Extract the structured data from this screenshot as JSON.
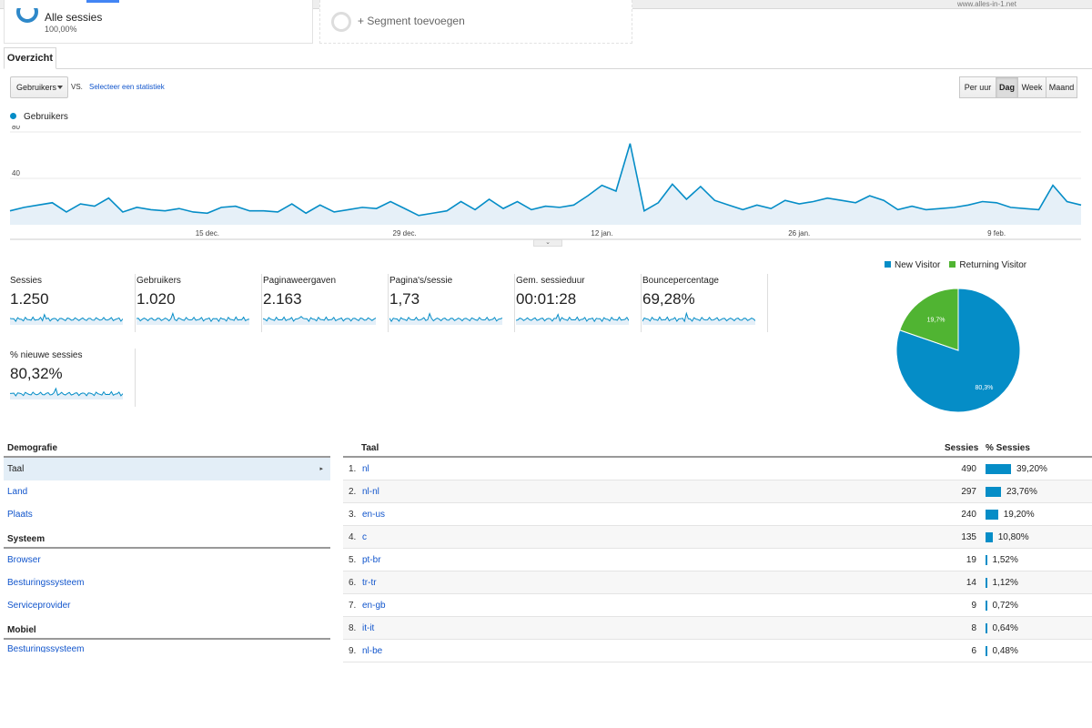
{
  "site": {
    "watermark": "www.alles-in-1.net"
  },
  "segments": {
    "active": {
      "title": "Alle sessies",
      "share": "100,00%"
    },
    "add_label": "+ Segment toevoegen"
  },
  "tabs": [
    {
      "label": "Overzicht"
    }
  ],
  "controls": {
    "metric_select": "Gebruikers",
    "vs_label": "VS.",
    "compare_link": "Selecteer een statistiek",
    "granularity": [
      {
        "label": "Per uur",
        "active": false
      },
      {
        "label": "Dag",
        "active": true
      },
      {
        "label": "Week",
        "active": false
      },
      {
        "label": "Maand",
        "active": false
      }
    ]
  },
  "chart_data": [
    {
      "type": "area",
      "series": [
        {
          "name": "Gebruikers",
          "color": "#058dc7",
          "values": [
            12,
            15,
            17,
            19,
            11,
            18,
            16,
            23,
            11,
            15,
            13,
            12,
            14,
            11,
            10,
            15,
            16,
            12,
            12,
            11,
            18,
            10,
            17,
            11,
            13,
            15,
            14,
            20,
            14,
            8,
            10,
            12,
            20,
            13,
            22,
            14,
            20,
            13,
            16,
            15,
            17,
            25,
            34,
            29,
            70,
            12,
            19,
            35,
            22,
            33,
            21,
            17,
            13,
            17,
            14,
            21,
            18,
            20,
            23,
            21,
            19,
            25,
            21,
            13,
            16,
            13,
            14,
            15,
            17,
            20,
            19,
            15,
            14,
            13,
            34,
            20,
            17
          ],
          "days": 77
        }
      ],
      "ylim": [
        0,
        80
      ],
      "yticks": [
        40,
        80
      ],
      "xticks": [
        {
          "label": "15 dec.",
          "day": 14
        },
        {
          "label": "29 dec.",
          "day": 28
        },
        {
          "label": "12 jan.",
          "day": 42
        },
        {
          "label": "26 jan.",
          "day": 56
        },
        {
          "label": "9 feb.",
          "day": 70
        }
      ]
    },
    {
      "type": "pie",
      "slices": [
        {
          "name": "New Visitor",
          "value": 80.3,
          "label": "80,3%",
          "color": "#058dc7"
        },
        {
          "name": "Returning Visitor",
          "value": 19.7,
          "label": "19,7%",
          "color": "#50b432"
        }
      ]
    }
  ],
  "metrics": [
    {
      "label": "Sessies",
      "value": "1.250"
    },
    {
      "label": "Gebruikers",
      "value": "1.020"
    },
    {
      "label": "Paginaweergaven",
      "value": "2.163"
    },
    {
      "label": "Pagina's/sessie",
      "value": "1,73"
    },
    {
      "label": "Gem. sessieduur",
      "value": "00:01:28"
    },
    {
      "label": "Bouncepercentage",
      "value": "69,28%"
    },
    {
      "label": "% nieuwe sessies",
      "value": "80,32%"
    }
  ],
  "nav": {
    "demografie": {
      "title": "Demografie",
      "items": [
        "Taal",
        "Land",
        "Plaats"
      ]
    },
    "systeem": {
      "title": "Systeem",
      "items": [
        "Browser",
        "Besturingssysteem",
        "Serviceprovider"
      ]
    },
    "mobiel": {
      "title": "Mobiel",
      "items": [
        "Besturingssysteem"
      ]
    }
  },
  "table": {
    "headers": {
      "dimension": "Taal",
      "sessions": "Sessies",
      "pct": "% Sessies"
    },
    "rows": [
      {
        "rank": "1.",
        "name": "nl",
        "sessions": "490",
        "pct": "39,20%",
        "share": 39.2
      },
      {
        "rank": "2.",
        "name": "nl-nl",
        "sessions": "297",
        "pct": "23,76%",
        "share": 23.76
      },
      {
        "rank": "3.",
        "name": "en-us",
        "sessions": "240",
        "pct": "19,20%",
        "share": 19.2
      },
      {
        "rank": "4.",
        "name": "c",
        "sessions": "135",
        "pct": "10,80%",
        "share": 10.8
      },
      {
        "rank": "5.",
        "name": "pt-br",
        "sessions": "19",
        "pct": "1,52%",
        "share": 1.52
      },
      {
        "rank": "6.",
        "name": "tr-tr",
        "sessions": "14",
        "pct": "1,12%",
        "share": 1.12
      },
      {
        "rank": "7.",
        "name": "en-gb",
        "sessions": "9",
        "pct": "0,72%",
        "share": 0.72
      },
      {
        "rank": "8.",
        "name": "it-it",
        "sessions": "8",
        "pct": "0,64%",
        "share": 0.64
      },
      {
        "rank": "9.",
        "name": "nl-be",
        "sessions": "6",
        "pct": "0,48%",
        "share": 0.48
      }
    ]
  }
}
